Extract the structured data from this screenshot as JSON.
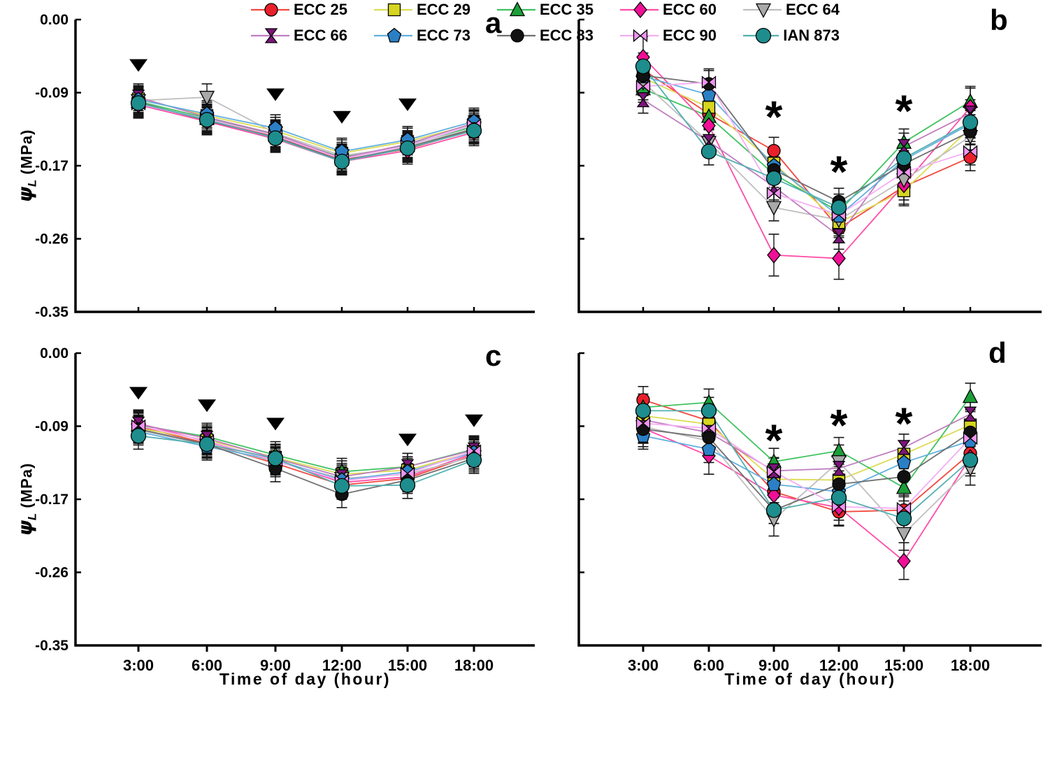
{
  "y_axis": {
    "symbol": "ψ",
    "subscript": "L",
    "units": " (MPa)",
    "tick_labels": [
      "0.00",
      "-0.09",
      "-0.17",
      "-0.26",
      "-0.35"
    ],
    "min": -0.35,
    "max": 0.0
  },
  "x_axis": {
    "label": "Time of day (hour)",
    "tick_labels": [
      "3:00",
      "6:00",
      "9:00",
      "12:00",
      "15:00",
      "18:00"
    ]
  },
  "panels": [
    {
      "id": "a",
      "label": "a"
    },
    {
      "id": "b",
      "label": "b"
    },
    {
      "id": "c",
      "label": "c"
    },
    {
      "id": "d",
      "label": "d"
    }
  ],
  "legend": {
    "rows": [
      [
        "ECC 25",
        "ECC 29",
        "ECC 35",
        "ECC 60",
        "ECC 64"
      ],
      [
        "ECC 66",
        "ECC 73",
        "ECC 83",
        "ECC 90",
        "IAN 873"
      ]
    ]
  },
  "series_styles": [
    {
      "name": "ECC 25",
      "marker": "circle",
      "fill": "#e8202c",
      "line": "#f2483e"
    },
    {
      "name": "ECC 29",
      "marker": "square",
      "fill": "#d6d51f",
      "line": "#dcdc55"
    },
    {
      "name": "ECC 35",
      "marker": "triangle-up",
      "fill": "#1d9e38",
      "line": "#3fc360"
    },
    {
      "name": "ECC 60",
      "marker": "diamond",
      "fill": "#f00f97",
      "line": "#ff4da8"
    },
    {
      "name": "ECC 64",
      "marker": "triangle-down",
      "fill": "#a9a9a9",
      "line": "#bfbfbf"
    },
    {
      "name": "ECC 66",
      "marker": "hourglass",
      "fill": "#7c157a",
      "line": "#c07ec0"
    },
    {
      "name": "ECC 73",
      "marker": "pentagon",
      "fill": "#2b80c5",
      "line": "#62b0e0"
    },
    {
      "name": "ECC 83",
      "marker": "circle",
      "fill": "#111111",
      "line": "#707070"
    },
    {
      "name": "ECC 90",
      "marker": "bowtie",
      "fill": "#f095f0",
      "line": "#f5aef5"
    },
    {
      "name": "IAN 873",
      "marker": "circle-large",
      "fill": "#1e8d8d",
      "line": "#53b0b0"
    }
  ],
  "chart_data": [
    {
      "type": "line",
      "panel": "a",
      "label": "a",
      "categories": [
        "3:00",
        "6:00",
        "9:00",
        "12:00",
        "15:00",
        "18:00"
      ],
      "ylabel": "ψL (MPa)",
      "ylim": [
        -0.35,
        0.0
      ],
      "grid": false,
      "error_bar": 0.016,
      "series": [
        {
          "name": "ECC 25",
          "values": [
            -0.1,
            -0.12,
            -0.14,
            -0.168,
            -0.155,
            -0.132
          ]
        },
        {
          "name": "ECC 29",
          "values": [
            -0.095,
            -0.115,
            -0.133,
            -0.16,
            -0.146,
            -0.125
          ]
        },
        {
          "name": "ECC 35",
          "values": [
            -0.098,
            -0.118,
            -0.138,
            -0.165,
            -0.15,
            -0.128
          ]
        },
        {
          "name": "ECC 60",
          "values": [
            -0.102,
            -0.122,
            -0.143,
            -0.17,
            -0.157,
            -0.135
          ]
        },
        {
          "name": "ECC 64",
          "values": [
            -0.097,
            -0.093,
            -0.136,
            -0.163,
            -0.152,
            -0.13
          ]
        },
        {
          "name": "ECC 66",
          "values": [
            -0.093,
            -0.117,
            -0.137,
            -0.166,
            -0.149,
            -0.124
          ]
        },
        {
          "name": "ECC 73",
          "values": [
            -0.096,
            -0.113,
            -0.13,
            -0.158,
            -0.144,
            -0.122
          ]
        },
        {
          "name": "ECC 83",
          "values": [
            -0.099,
            -0.121,
            -0.141,
            -0.169,
            -0.153,
            -0.131
          ]
        },
        {
          "name": "ECC 90",
          "values": [
            -0.101,
            -0.119,
            -0.139,
            -0.167,
            -0.151,
            -0.126
          ]
        },
        {
          "name": "IAN 873",
          "values": [
            -0.1,
            -0.12,
            -0.142,
            -0.17,
            -0.154,
            -0.133
          ]
        }
      ],
      "annotations": [
        {
          "type": "triangle-down",
          "x": "3:00",
          "y": -0.055
        },
        {
          "type": "triangle-down",
          "x": "9:00",
          "y": -0.09
        },
        {
          "type": "triangle-down",
          "x": "12:00",
          "y": -0.117
        },
        {
          "type": "triangle-down",
          "x": "15:00",
          "y": -0.102
        }
      ]
    },
    {
      "type": "line",
      "panel": "b",
      "label": "b",
      "categories": [
        "3:00",
        "6:00",
        "9:00",
        "12:00",
        "15:00",
        "18:00"
      ],
      "ylabel": "ψL (MPa)",
      "ylim": [
        -0.35,
        0.0
      ],
      "grid": false,
      "error_bar": 0.016,
      "error_bar_overrides": {
        "ECC 60": 0.025
      },
      "series": [
        {
          "name": "ECC 25",
          "values": [
            -0.06,
            -0.113,
            -0.157,
            -0.25,
            -0.2,
            -0.165
          ]
        },
        {
          "name": "ECC 29",
          "values": [
            -0.07,
            -0.105,
            -0.172,
            -0.243,
            -0.205,
            -0.13
          ]
        },
        {
          "name": "ECC 35",
          "values": [
            -0.083,
            -0.116,
            -0.185,
            -0.23,
            -0.147,
            -0.098
          ]
        },
        {
          "name": "ECC 60",
          "values": [
            -0.045,
            -0.127,
            -0.282,
            -0.286,
            -0.198,
            -0.105
          ]
        },
        {
          "name": "ECC 64",
          "values": [
            -0.075,
            -0.147,
            -0.225,
            -0.24,
            -0.192,
            -0.14
          ]
        },
        {
          "name": "ECC 66",
          "values": [
            -0.096,
            -0.146,
            -0.2,
            -0.259,
            -0.152,
            -0.112
          ]
        },
        {
          "name": "ECC 73",
          "values": [
            -0.068,
            -0.09,
            -0.175,
            -0.235,
            -0.168,
            -0.125
          ]
        },
        {
          "name": "ECC 83",
          "values": [
            -0.067,
            -0.077,
            -0.18,
            -0.218,
            -0.173,
            -0.134
          ]
        },
        {
          "name": "ECC 90",
          "values": [
            -0.08,
            -0.075,
            -0.208,
            -0.234,
            -0.183,
            -0.158
          ]
        },
        {
          "name": "IAN 873",
          "values": [
            -0.056,
            -0.158,
            -0.19,
            -0.225,
            -0.166,
            -0.123
          ]
        }
      ],
      "annotations": [
        {
          "type": "asterisk",
          "x": "9:00",
          "y": -0.112
        },
        {
          "type": "asterisk",
          "x": "12:00",
          "y": -0.178
        },
        {
          "type": "asterisk",
          "x": "15:00",
          "y": -0.105
        }
      ]
    },
    {
      "type": "line",
      "panel": "c",
      "label": "c",
      "categories": [
        "3:00",
        "6:00",
        "9:00",
        "12:00",
        "15:00",
        "18:00"
      ],
      "xlabel": "Time of day (hour)",
      "ylabel": "ψL (MPa)",
      "ylim": [
        -0.35,
        0.0
      ],
      "grid": false,
      "error_bar": 0.016,
      "series": [
        {
          "name": "ECC 25",
          "values": [
            -0.088,
            -0.108,
            -0.132,
            -0.158,
            -0.15,
            -0.122
          ]
        },
        {
          "name": "ECC 29",
          "values": [
            -0.09,
            -0.104,
            -0.125,
            -0.145,
            -0.14,
            -0.118
          ]
        },
        {
          "name": "ECC 35",
          "values": [
            -0.086,
            -0.1,
            -0.122,
            -0.142,
            -0.136,
            -0.115
          ]
        },
        {
          "name": "ECC 60",
          "values": [
            -0.084,
            -0.106,
            -0.128,
            -0.155,
            -0.148,
            -0.12
          ]
        },
        {
          "name": "ECC 64",
          "values": [
            -0.092,
            -0.11,
            -0.13,
            -0.15,
            -0.145,
            -0.124
          ]
        },
        {
          "name": "ECC 66",
          "values": [
            -0.085,
            -0.102,
            -0.126,
            -0.148,
            -0.136,
            -0.116
          ]
        },
        {
          "name": "ECC 73",
          "values": [
            -0.094,
            -0.112,
            -0.128,
            -0.152,
            -0.142,
            -0.119
          ]
        },
        {
          "name": "ECC 83",
          "values": [
            -0.091,
            -0.109,
            -0.138,
            -0.169,
            -0.152,
            -0.126
          ]
        },
        {
          "name": "ECC 90",
          "values": [
            -0.087,
            -0.105,
            -0.129,
            -0.153,
            -0.144,
            -0.117
          ]
        },
        {
          "name": "IAN 873",
          "values": [
            -0.099,
            -0.109,
            -0.126,
            -0.159,
            -0.158,
            -0.128
          ]
        }
      ],
      "annotations": [
        {
          "type": "triangle-down",
          "x": "3:00",
          "y": -0.048
        },
        {
          "type": "triangle-down",
          "x": "6:00",
          "y": -0.063
        },
        {
          "type": "triangle-down",
          "x": "9:00",
          "y": -0.085
        },
        {
          "type": "triangle-down",
          "x": "15:00",
          "y": -0.104
        },
        {
          "type": "triangle-down",
          "x": "18:00",
          "y": -0.081
        }
      ]
    },
    {
      "type": "line",
      "panel": "d",
      "label": "d",
      "categories": [
        "3:00",
        "6:00",
        "9:00",
        "12:00",
        "15:00",
        "18:00"
      ],
      "xlabel": "Time of day (hour)",
      "ylabel": "ψL (MPa)",
      "ylim": [
        -0.35,
        0.0
      ],
      "grid": false,
      "error_bar": 0.016,
      "error_bar_overrides": {
        "ECC 60": 0.022,
        "ECC 64": 0.02
      },
      "series": [
        {
          "name": "ECC 25",
          "values": [
            -0.056,
            -0.081,
            -0.166,
            -0.19,
            -0.188,
            -0.12
          ]
        },
        {
          "name": "ECC 29",
          "values": [
            -0.075,
            -0.085,
            -0.151,
            -0.152,
            -0.121,
            -0.086
          ]
        },
        {
          "name": "ECC 35",
          "values": [
            -0.065,
            -0.059,
            -0.13,
            -0.117,
            -0.161,
            -0.052
          ]
        },
        {
          "name": "ECC 60",
          "values": [
            -0.09,
            -0.123,
            -0.17,
            -0.185,
            -0.249,
            -0.125
          ]
        },
        {
          "name": "ECC 64",
          "values": [
            -0.088,
            -0.105,
            -0.199,
            -0.13,
            -0.216,
            -0.138
          ]
        },
        {
          "name": "ECC 66",
          "values": [
            -0.08,
            -0.095,
            -0.141,
            -0.138,
            -0.113,
            -0.073
          ]
        },
        {
          "name": "ECC 73",
          "values": [
            -0.099,
            -0.115,
            -0.157,
            -0.166,
            -0.131,
            -0.105
          ]
        },
        {
          "name": "ECC 83",
          "values": [
            -0.091,
            -0.101,
            -0.188,
            -0.157,
            -0.148,
            -0.095
          ]
        },
        {
          "name": "ECC 90",
          "values": [
            -0.084,
            -0.09,
            -0.142,
            -0.184,
            -0.186,
            -0.102
          ]
        },
        {
          "name": "IAN 873",
          "values": [
            -0.069,
            -0.069,
            -0.188,
            -0.173,
            -0.198,
            -0.128
          ]
        }
      ],
      "annotations": [
        {
          "type": "asterisk",
          "x": "9:00",
          "y": -0.1
        },
        {
          "type": "asterisk",
          "x": "12:00",
          "y": -0.082
        },
        {
          "type": "asterisk",
          "x": "15:00",
          "y": -0.08
        }
      ]
    }
  ]
}
